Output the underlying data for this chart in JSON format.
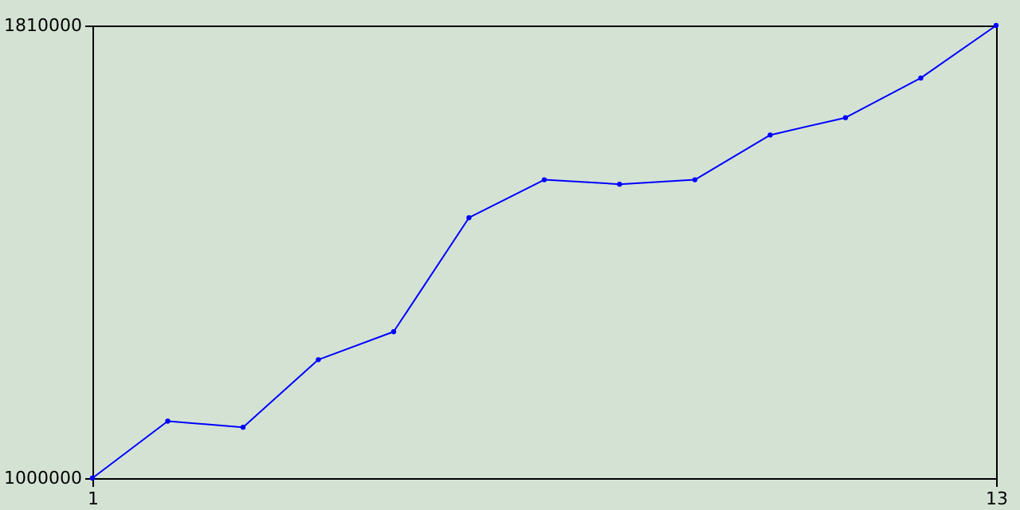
{
  "chart_data": {
    "type": "line",
    "x": [
      1,
      2,
      3,
      4,
      5,
      6,
      7,
      8,
      9,
      10,
      11,
      12,
      13
    ],
    "series": [
      {
        "color": "#0000ff",
        "values": [
          1000000,
          1102000,
          1091000,
          1212000,
          1262000,
          1466000,
          1534000,
          1526000,
          1534000,
          1614000,
          1645000,
          1716000,
          1810000
        ]
      }
    ],
    "xlim": [
      1,
      13
    ],
    "xticks": [
      1,
      13
    ],
    "ylim": [
      1000000,
      1810000
    ],
    "yticks": [
      1000000,
      1810000
    ],
    "marker": "circle",
    "line_style": "solid",
    "grid": false
  }
}
